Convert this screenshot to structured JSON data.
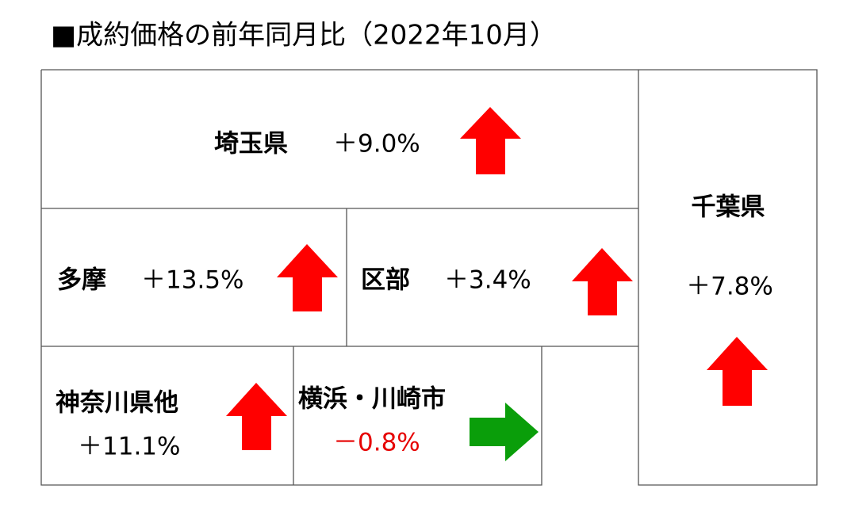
{
  "title": "■成約価格の前年同月比（2022年10月）",
  "regions": [
    {
      "name": "埼玉県",
      "change": "＋9.0%"
    },
    {
      "name": "千葉県",
      "change": "＋7.8%"
    },
    {
      "name": "多摩",
      "change": "＋13.5%"
    },
    {
      "name": "区部",
      "change": "＋3.4%"
    },
    {
      "name": "神奈川県他",
      "change": "＋11.1%"
    },
    {
      "name": "横浜・川崎市",
      "change": "－0.8%"
    }
  ]
}
